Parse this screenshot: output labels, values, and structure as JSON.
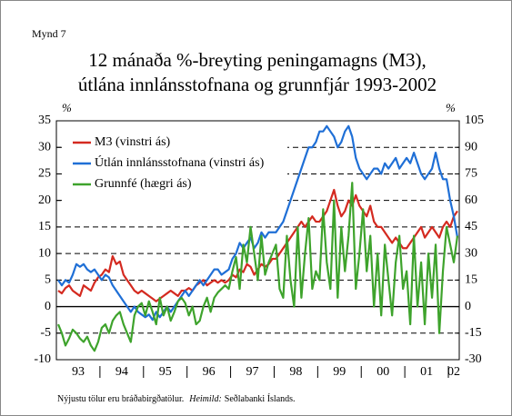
{
  "chart_data": {
    "type": "line",
    "figure_label": "Mynd 7",
    "title_lines": [
      "12 mánaða %-breyting peningamagns (M3),",
      "útlána innlánsstofnana og grunnfjár 1993-2002"
    ],
    "y_unit": "%",
    "y2_unit": "%",
    "years": [
      "93",
      "94",
      "95",
      "96",
      "97",
      "98",
      "99",
      "00",
      "01",
      "02"
    ],
    "ylim": [
      -10,
      35
    ],
    "yticks": [
      -10,
      -5,
      0,
      5,
      10,
      15,
      20,
      25,
      30,
      35
    ],
    "y2lim": [
      -30,
      105
    ],
    "y2ticks": [
      -30,
      -15,
      0,
      15,
      30,
      45,
      60,
      75,
      90,
      105
    ],
    "grid": true,
    "legend": "top-left",
    "series": [
      {
        "name": "M3 (vinstri ás)",
        "color": "#d42a20",
        "axis": "y",
        "values": [
          3,
          2.5,
          3.5,
          4,
          3,
          2.5,
          2,
          4,
          3.5,
          3,
          4.5,
          5.5,
          6,
          7,
          6.5,
          9.5,
          8,
          8.5,
          6,
          5,
          4,
          3,
          2.5,
          3,
          2.5,
          2,
          1.5,
          1,
          1.5,
          2,
          2.5,
          3,
          2.5,
          2,
          3,
          3,
          3.5,
          3,
          4,
          4.5,
          5,
          4,
          4.5,
          5,
          4.5,
          5,
          4.5,
          5,
          6,
          5.5,
          7,
          6.5,
          8,
          7.5,
          6,
          7,
          8,
          7.5,
          8,
          9,
          9,
          10,
          11,
          12,
          13,
          14,
          15,
          16,
          15,
          16,
          17,
          16,
          16,
          17,
          18,
          20,
          22,
          19,
          17,
          18,
          20,
          19,
          21,
          19,
          18,
          17,
          19,
          16,
          15,
          15,
          14,
          13,
          12,
          13,
          12,
          11,
          11,
          12,
          13,
          14,
          15,
          13,
          14,
          15,
          14,
          13,
          15,
          16,
          15,
          17,
          18
        ]
      },
      {
        "name": "Útlán innlánsstofnana (vinstri ás)",
        "color": "#1f6fd6",
        "axis": "y",
        "values": [
          5,
          4,
          5,
          4.5,
          6,
          8,
          7.5,
          8,
          7,
          6.5,
          7,
          6,
          5,
          6,
          5.5,
          4,
          3,
          2,
          1,
          0,
          -1,
          0,
          -1,
          -1.5,
          -2,
          -1.5,
          -2.5,
          -1,
          -2,
          -1,
          0,
          -1,
          0,
          1,
          2,
          3,
          2,
          3,
          4,
          5,
          4,
          5,
          6,
          7,
          7,
          6,
          6.5,
          7,
          9,
          10,
          12,
          11,
          12,
          13,
          11,
          12,
          14,
          13,
          14,
          14,
          14,
          15,
          16,
          18,
          20,
          22,
          24,
          26,
          28,
          30,
          30,
          31,
          33,
          33,
          34,
          33,
          32,
          30,
          31,
          33,
          34,
          32,
          28,
          26,
          25,
          24,
          25,
          26,
          26,
          25,
          27,
          26,
          27,
          28,
          26,
          27,
          28,
          27,
          29,
          27,
          25,
          24,
          25,
          26,
          29,
          26,
          24,
          24,
          20,
          17,
          13
        ]
      },
      {
        "name": "Grunnfé (hægri ás)",
        "color": "#3ea32c",
        "axis": "y2",
        "values": [
          -10,
          -15,
          -22,
          -18,
          -13,
          -15,
          -18,
          -20,
          -17,
          -22,
          -25,
          -20,
          -12,
          -10,
          -15,
          -8,
          -5,
          -3,
          -10,
          -15,
          -20,
          -5,
          0,
          2,
          -5,
          3,
          -3,
          -10,
          5,
          -5,
          0,
          -8,
          -3,
          3,
          5,
          2,
          -5,
          0,
          -10,
          -8,
          0,
          5,
          -3,
          5,
          8,
          10,
          12,
          10,
          20,
          28,
          10,
          35,
          25,
          45,
          30,
          15,
          40,
          18,
          25,
          30,
          35,
          10,
          5,
          40,
          15,
          0,
          45,
          5,
          30,
          50,
          10,
          20,
          15,
          55,
          25,
          10,
          60,
          5,
          45,
          20,
          40,
          70,
          10,
          30,
          55,
          20,
          40,
          0,
          30,
          -5,
          35,
          15,
          -5,
          25,
          40,
          10,
          20,
          -10,
          40,
          0,
          25,
          -10,
          30,
          5,
          35,
          -15,
          20,
          45,
          35,
          25,
          40
        ]
      }
    ],
    "footnote": "Nýjustu tölur eru bráðabirgðatölur.",
    "source_label": "Heimild:",
    "source": "Seðlabanki Íslands."
  }
}
